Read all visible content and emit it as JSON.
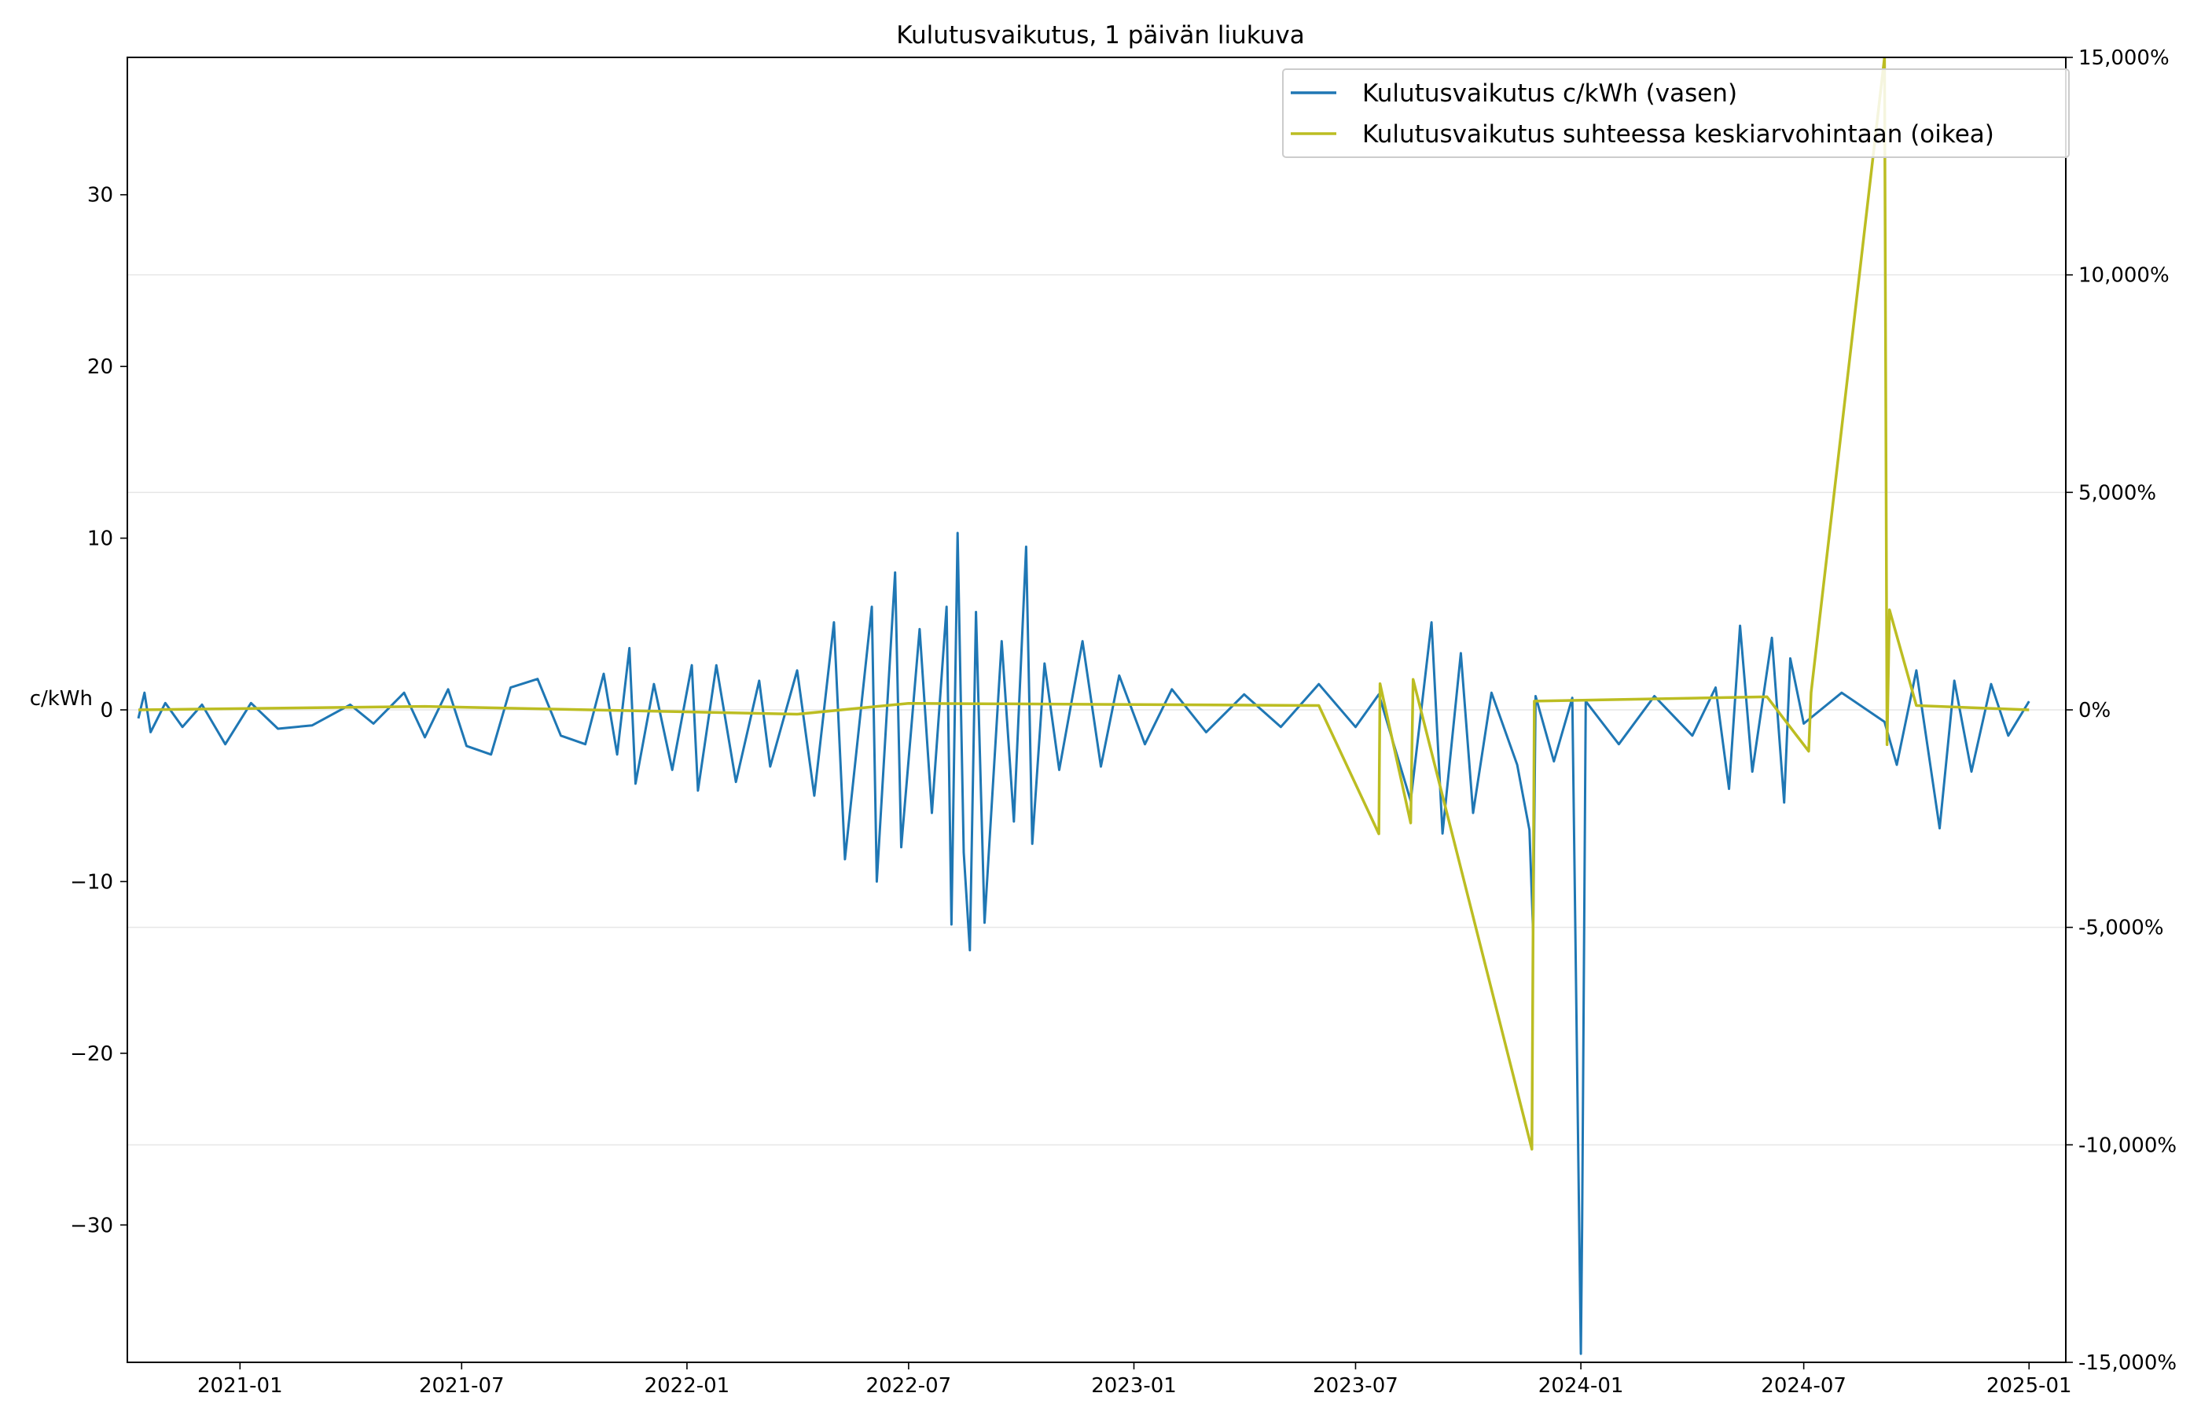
{
  "chart_data": {
    "type": "line",
    "title": "Kulutusvaikutus, 1 päivän liukuva",
    "ylabel_left": "c/kWh",
    "ylabel_right": "",
    "xlabel": "",
    "x_range": [
      "2020-10-01",
      "2025-01-31"
    ],
    "ylim_left": [
      -38.0,
      38.0
    ],
    "ylim_right": [
      -15000,
      15000
    ],
    "x_ticks": [
      "2021-01",
      "2021-07",
      "2022-01",
      "2022-07",
      "2023-01",
      "2023-07",
      "2024-01",
      "2024-07",
      "2025-01"
    ],
    "x_tick_labels": [
      "2021-01",
      "2021-07",
      "2022-01",
      "2022-07",
      "2023-01",
      "2023-07",
      "2024-01",
      "2024-07",
      "2025-01"
    ],
    "y_ticks_left": [
      30,
      20,
      10,
      0,
      -10,
      -20,
      -30
    ],
    "y_tick_labels_left": [
      "30",
      "20",
      "10",
      "0",
      "−10",
      "−20",
      "−30"
    ],
    "y_ticks_right": [
      15000,
      10000,
      5000,
      0,
      -5000,
      -10000,
      -15000
    ],
    "y_tick_labels_right": [
      "15,000%",
      "10,000%",
      "5,000%",
      "0%",
      "-5,000%",
      "-10,000%",
      "-15,000%"
    ],
    "grid": "horizontal, right axis",
    "legend_position": "top-right",
    "colors": {
      "series_left": "#1f77b4",
      "series_right": "#bcbd22",
      "grid": "#e6e6e6"
    },
    "series": [
      {
        "name": "Kulutusvaikutus c/kWh (vasen)",
        "axis": "left",
        "color": "#1f77b4",
        "points": [
          [
            "2020-10-10",
            -0.5
          ],
          [
            "2020-10-15",
            1.0
          ],
          [
            "2020-10-20",
            -1.3
          ],
          [
            "2020-11-01",
            0.4
          ],
          [
            "2020-11-15",
            -1.0
          ],
          [
            "2020-12-01",
            0.3
          ],
          [
            "2020-12-20",
            -2.0
          ],
          [
            "2021-01-10",
            0.4
          ],
          [
            "2021-02-01",
            -1.1
          ],
          [
            "2021-03-01",
            -0.9
          ],
          [
            "2021-04-01",
            0.3
          ],
          [
            "2021-04-20",
            -0.8
          ],
          [
            "2021-05-15",
            1.0
          ],
          [
            "2021-06-01",
            -1.6
          ],
          [
            "2021-06-20",
            1.2
          ],
          [
            "2021-07-05",
            -2.1
          ],
          [
            "2021-07-25",
            -2.6
          ],
          [
            "2021-08-10",
            1.3
          ],
          [
            "2021-09-01",
            1.8
          ],
          [
            "2021-09-20",
            -1.5
          ],
          [
            "2021-10-10",
            -2.0
          ],
          [
            "2021-10-25",
            2.1
          ],
          [
            "2021-11-05",
            -2.6
          ],
          [
            "2021-11-15",
            3.6
          ],
          [
            "2021-11-20",
            -4.3
          ],
          [
            "2021-12-05",
            1.5
          ],
          [
            "2021-12-20",
            -3.5
          ],
          [
            "2022-01-05",
            2.6
          ],
          [
            "2022-01-10",
            -4.7
          ],
          [
            "2022-01-25",
            2.6
          ],
          [
            "2022-02-10",
            -4.2
          ],
          [
            "2022-03-01",
            1.7
          ],
          [
            "2022-03-10",
            -3.3
          ],
          [
            "2022-04-01",
            2.3
          ],
          [
            "2022-04-15",
            -5.0
          ],
          [
            "2022-05-01",
            5.1
          ],
          [
            "2022-05-10",
            -8.7
          ],
          [
            "2022-06-01",
            6.0
          ],
          [
            "2022-06-05",
            -10.0
          ],
          [
            "2022-06-20",
            8.0
          ],
          [
            "2022-06-25",
            -8.0
          ],
          [
            "2022-07-10",
            4.7
          ],
          [
            "2022-07-20",
            -6.0
          ],
          [
            "2022-08-01",
            6.0
          ],
          [
            "2022-08-05",
            -12.5
          ],
          [
            "2022-08-10",
            10.3
          ],
          [
            "2022-08-15",
            -8.3
          ],
          [
            "2022-08-20",
            -14.0
          ],
          [
            "2022-08-25",
            5.7
          ],
          [
            "2022-09-01",
            -12.4
          ],
          [
            "2022-09-15",
            4.0
          ],
          [
            "2022-09-25",
            -6.5
          ],
          [
            "2022-10-05",
            9.5
          ],
          [
            "2022-10-10",
            -7.8
          ],
          [
            "2022-10-20",
            2.7
          ],
          [
            "2022-11-01",
            -3.5
          ],
          [
            "2022-11-20",
            4.0
          ],
          [
            "2022-12-05",
            -3.3
          ],
          [
            "2022-12-20",
            2.0
          ],
          [
            "2023-01-10",
            -2.0
          ],
          [
            "2023-02-01",
            1.2
          ],
          [
            "2023-03-01",
            -1.3
          ],
          [
            "2023-04-01",
            0.9
          ],
          [
            "2023-05-01",
            -1.0
          ],
          [
            "2023-06-01",
            1.5
          ],
          [
            "2023-07-01",
            -1.0
          ],
          [
            "2023-07-20",
            0.9
          ],
          [
            "2023-08-15",
            -5.3
          ],
          [
            "2023-09-01",
            5.1
          ],
          [
            "2023-09-10",
            -7.2
          ],
          [
            "2023-09-25",
            3.3
          ],
          [
            "2023-10-05",
            -6.0
          ],
          [
            "2023-10-20",
            1.0
          ],
          [
            "2023-11-10",
            -3.2
          ],
          [
            "2023-11-20",
            -7.0
          ],
          [
            "2023-11-23",
            -13.0
          ],
          [
            "2023-11-25",
            0.8
          ],
          [
            "2023-12-10",
            -3.0
          ],
          [
            "2023-12-25",
            0.7
          ],
          [
            "2024-01-01",
            -37.5
          ],
          [
            "2024-01-02",
            -30.0
          ],
          [
            "2024-01-05",
            0.5
          ],
          [
            "2024-02-01",
            -2.0
          ],
          [
            "2024-03-01",
            0.8
          ],
          [
            "2024-04-01",
            -1.5
          ],
          [
            "2024-04-20",
            1.3
          ],
          [
            "2024-05-01",
            -4.6
          ],
          [
            "2024-05-10",
            4.9
          ],
          [
            "2024-05-20",
            -3.6
          ],
          [
            "2024-06-05",
            4.2
          ],
          [
            "2024-06-15",
            -5.4
          ],
          [
            "2024-06-20",
            3.0
          ],
          [
            "2024-07-01",
            -0.8
          ],
          [
            "2024-08-01",
            1.0
          ],
          [
            "2024-09-05",
            -0.7
          ],
          [
            "2024-09-15",
            -3.2
          ],
          [
            "2024-10-01",
            2.3
          ],
          [
            "2024-10-20",
            -6.9
          ],
          [
            "2024-11-01",
            1.7
          ],
          [
            "2024-11-15",
            -3.6
          ],
          [
            "2024-12-01",
            1.5
          ],
          [
            "2024-12-15",
            -1.5
          ],
          [
            "2025-01-01",
            0.5
          ]
        ]
      },
      {
        "name": "Kulutusvaikutus suhteessa keskiarvohintaan (oikea)",
        "axis": "right",
        "color": "#bcbd22",
        "points": [
          [
            "2020-10-10",
            0
          ],
          [
            "2021-06-01",
            80
          ],
          [
            "2022-04-01",
            -100
          ],
          [
            "2022-07-01",
            150
          ],
          [
            "2023-06-01",
            100
          ],
          [
            "2023-07-20",
            -2850
          ],
          [
            "2023-07-21",
            600
          ],
          [
            "2023-08-15",
            -2600
          ],
          [
            "2023-08-17",
            700
          ],
          [
            "2023-11-22",
            -10100
          ],
          [
            "2023-11-24",
            200
          ],
          [
            "2024-06-01",
            300
          ],
          [
            "2024-07-05",
            -950
          ],
          [
            "2024-07-07",
            400
          ],
          [
            "2024-09-05",
            15000
          ],
          [
            "2024-09-07",
            -800
          ],
          [
            "2024-09-09",
            2300
          ],
          [
            "2024-10-01",
            100
          ],
          [
            "2025-01-01",
            0
          ]
        ]
      }
    ]
  }
}
